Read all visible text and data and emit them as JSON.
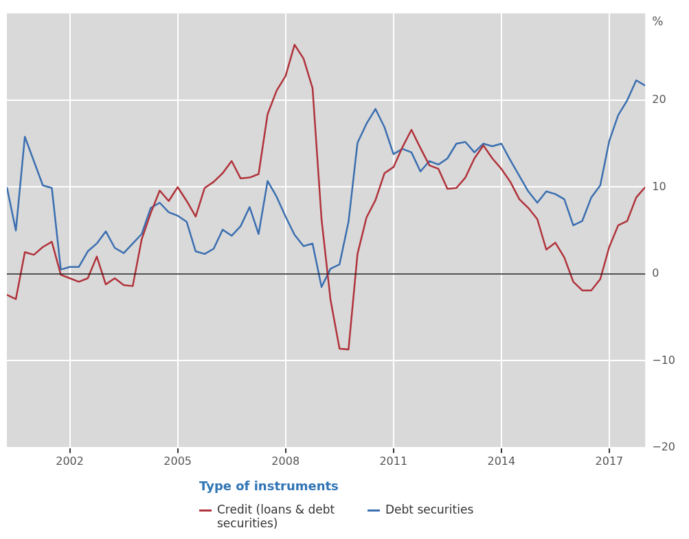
{
  "chart_data": {
    "type": "line",
    "ylabel": "%",
    "legend_title": "Type of instruments",
    "x": [
      2000.25,
      2000.5,
      2000.75,
      2001,
      2001.25,
      2001.5,
      2001.75,
      2002,
      2002.25,
      2002.5,
      2002.75,
      2003,
      2003.25,
      2003.5,
      2003.75,
      2004,
      2004.25,
      2004.5,
      2004.75,
      2005,
      2005.25,
      2005.5,
      2005.75,
      2006,
      2006.25,
      2006.5,
      2006.75,
      2007,
      2007.25,
      2007.5,
      2007.75,
      2008,
      2008.25,
      2008.5,
      2008.75,
      2009,
      2009.25,
      2009.5,
      2009.75,
      2010,
      2010.25,
      2010.5,
      2010.75,
      2011,
      2011.25,
      2011.5,
      2011.75,
      2012,
      2012.25,
      2012.5,
      2012.75,
      2013,
      2013.25,
      2013.5,
      2013.75,
      2014,
      2014.25,
      2014.5,
      2014.75,
      2015,
      2015.25,
      2015.5,
      2015.75,
      2016,
      2016.25,
      2016.5,
      2016.75,
      2017,
      2017.25,
      2017.5,
      2017.75,
      2018
    ],
    "series": [
      {
        "name": "Credit (loans & debt securities)",
        "color": "#b0323a",
        "values": [
          -2.4,
          -2.9,
          2.5,
          2.2,
          3.1,
          3.7,
          -0.1,
          -0.5,
          -0.9,
          -0.5,
          2.0,
          -1.2,
          -0.5,
          -1.3,
          -1.4,
          4.0,
          7.0,
          9.6,
          8.4,
          10.0,
          8.4,
          6.6,
          9.9,
          10.6,
          11.6,
          13.0,
          11.0,
          11.1,
          11.5,
          18.4,
          21.1,
          22.8,
          26.4,
          24.8,
          21.4,
          6.3,
          -3.0,
          -8.6,
          -8.7,
          2.3,
          6.5,
          8.5,
          11.6,
          12.3,
          14.6,
          16.6,
          14.5,
          12.5,
          12.1,
          9.8,
          9.9,
          11.1,
          13.3,
          14.8,
          13.3,
          12.1,
          10.6,
          8.6,
          7.6,
          6.3,
          2.8,
          3.6,
          1.9,
          -0.9,
          -1.9,
          -1.9,
          -0.6,
          3.1,
          5.6,
          6.1,
          8.8,
          10.0
        ]
      },
      {
        "name": "Debt securities",
        "color": "#3a6eb0",
        "values": [
          10.0,
          5.0,
          15.8,
          13.0,
          10.2,
          9.9,
          0.5,
          0.8,
          0.8,
          2.6,
          3.5,
          4.9,
          3.0,
          2.4,
          3.5,
          4.6,
          7.6,
          8.2,
          7.1,
          6.7,
          6.0,
          2.6,
          2.3,
          2.9,
          5.1,
          4.4,
          5.5,
          7.7,
          4.6,
          10.7,
          8.9,
          6.6,
          4.5,
          3.2,
          3.5,
          -1.5,
          0.6,
          1.1,
          6.0,
          15.1,
          17.3,
          19.0,
          16.9,
          13.8,
          14.4,
          14.0,
          11.8,
          13.0,
          12.6,
          13.3,
          15.0,
          15.2,
          14.0,
          15.0,
          14.7,
          15.0,
          13.1,
          11.3,
          9.5,
          8.2,
          9.5,
          9.2,
          8.6,
          5.6,
          6.1,
          8.8,
          10.2,
          15.3,
          18.3,
          20.0,
          22.3,
          21.7
        ]
      }
    ],
    "xlim": [
      2000.25,
      2018
    ],
    "xticks": [
      2002,
      2005,
      2008,
      2011,
      2014,
      2017
    ],
    "ylim": [
      -20,
      30
    ],
    "yticks": [
      -20,
      -10,
      0,
      10,
      20
    ],
    "ref_lines": [
      {
        "axis": "y",
        "value": 0,
        "color": "#1a1a1a"
      }
    ],
    "grid": true,
    "legend": "bottom",
    "line_style": "solid",
    "marker": "none"
  }
}
